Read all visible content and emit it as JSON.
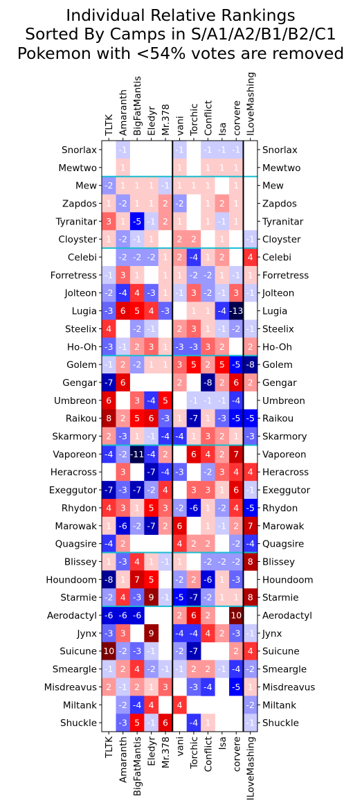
{
  "chart_data": {
    "type": "heatmap",
    "title_lines": [
      "Individual Relative Rankings",
      "Sorted By Camps in S/A1/A2/B1/B2/C1",
      "Pokemon with <54% votes are removed"
    ],
    "columns": [
      "TLTK",
      "Amaranth",
      "BigFatMantis",
      "Eledyr",
      "Mr.378",
      "vani",
      "Torchic",
      "Conflict",
      "Isa",
      "corvere",
      "ILoveMashing"
    ],
    "rows": [
      "Snorlax",
      "Mewtwo",
      "Mew",
      "Zapdos",
      "Tyranitar",
      "Cloyster",
      "Celebi",
      "Forretress",
      "Jolteon",
      "Lugia",
      "Steelix",
      "Ho-Oh",
      "Golem",
      "Gengar",
      "Umbreon",
      "Raikou",
      "Skarmory",
      "Vaporeon",
      "Heracross",
      "Exeggutor",
      "Rhydon",
      "Marowak",
      "Quagsire",
      "Blissey",
      "Houndoom",
      "Starmie",
      "Aerodactyl",
      "Jynx",
      "Suicune",
      "Smeargle",
      "Misdreavus",
      "Miltank",
      "Shuckle"
    ],
    "values": [
      [
        0,
        -1,
        0,
        0,
        0,
        -1,
        0,
        -1,
        -1,
        -1,
        0
      ],
      [
        0,
        1,
        0,
        0,
        0,
        1,
        0,
        1,
        1,
        1,
        0
      ],
      [
        -2,
        1,
        1,
        1,
        -1,
        1,
        1,
        1,
        0,
        1,
        0
      ],
      [
        1,
        -2,
        1,
        1,
        2,
        -2,
        0,
        1,
        2,
        1,
        0
      ],
      [
        3,
        1,
        -5,
        -1,
        2,
        1,
        0,
        1,
        -1,
        1,
        0
      ],
      [
        1,
        -2,
        -1,
        1,
        0,
        2,
        2,
        0,
        1,
        0,
        -1
      ],
      [
        null,
        -2,
        -2,
        -2,
        1,
        2,
        -4,
        1,
        2,
        null,
        4
      ],
      [
        -1,
        3,
        1,
        0,
        1,
        1,
        -2,
        -2,
        1,
        -1,
        1
      ],
      [
        -2,
        -4,
        4,
        -3,
        1,
        -1,
        3,
        -2,
        -1,
        3,
        -1
      ],
      [
        -3,
        6,
        5,
        4,
        -3,
        0,
        1,
        1,
        -4,
        -13,
        0
      ],
      [
        4,
        0,
        -2,
        -1,
        0,
        2,
        3,
        1,
        -1,
        -2,
        -1
      ],
      [
        -3,
        -1,
        2,
        3,
        1,
        -3,
        -3,
        3,
        2,
        0,
        2
      ],
      [
        -1,
        2,
        -2,
        1,
        1,
        3,
        5,
        2,
        5,
        -5,
        -8
      ],
      [
        -7,
        6,
        0,
        0,
        0,
        2,
        0,
        -8,
        2,
        6,
        2
      ],
      [
        6,
        0,
        3,
        -4,
        5,
        0,
        -1,
        -1,
        -1,
        -4,
        0
      ],
      [
        8,
        2,
        5,
        6,
        -3,
        1,
        -7,
        1,
        -3,
        -5,
        -5
      ],
      [
        2,
        -3,
        1,
        -1,
        -4,
        -4,
        1,
        3,
        2,
        1,
        -3
      ],
      [
        -4,
        -2,
        -11,
        -4,
        2,
        null,
        6,
        4,
        2,
        7,
        null
      ],
      [
        0,
        3,
        null,
        -7,
        -4,
        -3,
        null,
        -2,
        3,
        4,
        4
      ],
      [
        -7,
        -3,
        -7,
        -2,
        4,
        0,
        3,
        3,
        1,
        6,
        -1
      ],
      [
        4,
        3,
        1,
        5,
        3,
        -2,
        -6,
        1,
        -2,
        4,
        -5
      ],
      [
        1,
        -6,
        -2,
        -7,
        2,
        6,
        0,
        1,
        -1,
        2,
        7
      ],
      [
        -4,
        2,
        0,
        null,
        0,
        4,
        2,
        2,
        0,
        -2,
        -4
      ],
      [
        1,
        -3,
        4,
        1,
        -1,
        1,
        0,
        -2,
        -2,
        -2,
        8
      ],
      [
        -8,
        1,
        7,
        5,
        null,
        -2,
        2,
        -6,
        1,
        -3,
        null
      ],
      [
        -2,
        4,
        -3,
        9,
        -1,
        -5,
        -7,
        -2,
        1,
        1,
        8
      ],
      [
        -6,
        -6,
        -6,
        null,
        null,
        2,
        6,
        2,
        null,
        10,
        0
      ],
      [
        -3,
        3,
        null,
        9,
        null,
        -4,
        -4,
        4,
        2,
        -3,
        -1
      ],
      [
        10,
        -2,
        -3,
        -1,
        null,
        -2,
        -7,
        null,
        null,
        2,
        4
      ],
      [
        -1,
        2,
        4,
        -2,
        -1,
        -1,
        2,
        2,
        -1,
        -4,
        -2
      ],
      [
        2,
        -1,
        2,
        1,
        3,
        0,
        -3,
        -4,
        0,
        -5,
        1
      ],
      [
        0,
        -2,
        -4,
        4,
        null,
        4,
        0,
        null,
        null,
        0,
        -2
      ],
      [
        null,
        -3,
        5,
        -1,
        6,
        null,
        -4,
        1,
        null,
        0,
        -1
      ]
    ],
    "colormap": "seismic",
    "color_range": [
      -10,
      10
    ],
    "row_groups": [
      [
        "Snorlax",
        "Mewtwo"
      ],
      [
        "Mew",
        "Zapdos",
        "Tyranitar",
        "Cloyster"
      ],
      [
        "Celebi",
        "Forretress",
        "Jolteon",
        "Lugia",
        "Steelix",
        "Ho-Oh"
      ],
      [
        "Golem",
        "Gengar",
        "Umbreon",
        "Raikou",
        "Skarmory"
      ],
      [
        "Vaporeon",
        "Heracross",
        "Exeggutor",
        "Rhydon",
        "Marowak",
        "Quagsire"
      ],
      [
        "Blissey",
        "Houndoom",
        "Starmie"
      ],
      [
        "Aerodactyl",
        "Jynx",
        "Suicune",
        "Smeargle",
        "Misdreavus",
        "Miltank",
        "Shuckle"
      ]
    ],
    "column_groups": [
      [
        "TLTK",
        "Amaranth",
        "BigFatMantis",
        "Eledyr",
        "Mr.378"
      ],
      [
        "vani",
        "Torchic",
        "Conflict",
        "Isa",
        "corvere"
      ],
      [
        "ILoveMashing"
      ]
    ],
    "colors": {
      "group_row_separator": "#17becf",
      "group_column_separator": "#000000",
      "cold": "#00004c",
      "mid": "#ffffff",
      "hot": "#7f0000"
    }
  }
}
